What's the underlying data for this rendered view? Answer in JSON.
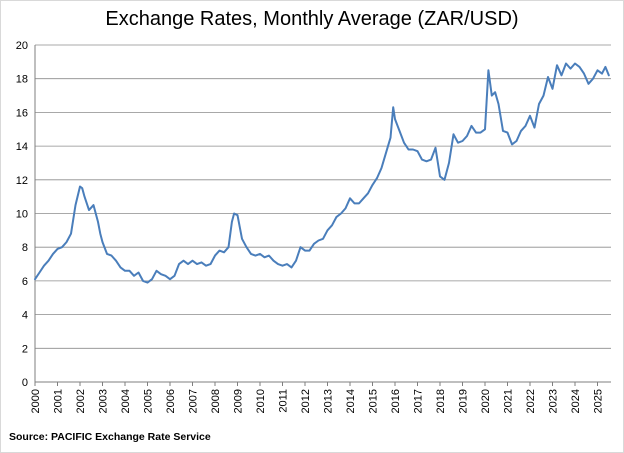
{
  "chart_data": {
    "type": "line",
    "title": "Exchange Rates, Monthly Average (ZAR/USD)",
    "source": "Source: PACIFIC Exchange Rate Service",
    "xlabel": "",
    "ylabel": "",
    "ylim": [
      0,
      20
    ],
    "yticks": [
      "0",
      "2",
      "4",
      "6",
      "8",
      "10",
      "12",
      "14",
      "16",
      "18",
      "20"
    ],
    "xlim": [
      2000,
      2025.6
    ],
    "xticks": [
      "2000",
      "2001",
      "2002",
      "2003",
      "2004",
      "2005",
      "2006",
      "2007",
      "2008",
      "2009",
      "2010",
      "2011",
      "2012",
      "2013",
      "2014",
      "2015",
      "2016",
      "2017",
      "2018",
      "2019",
      "2020",
      "2021",
      "2022",
      "2023",
      "2024",
      "2025"
    ],
    "grid": "horizontal",
    "legend": "none",
    "line_color": "#4a7ebb",
    "series": [
      {
        "x": [
          2000.0,
          2000.2,
          2000.4,
          2000.6,
          2000.8,
          2001.0,
          2001.2,
          2001.4,
          2001.6,
          2001.8,
          2002.0,
          2002.1,
          2002.2,
          2002.4,
          2002.6,
          2002.8,
          2002.9,
          2003.0,
          2003.2,
          2003.4,
          2003.6,
          2003.8,
          2004.0,
          2004.2,
          2004.4,
          2004.6,
          2004.8,
          2005.0,
          2005.2,
          2005.4,
          2005.6,
          2005.8,
          2006.0,
          2006.2,
          2006.4,
          2006.6,
          2006.8,
          2007.0,
          2007.2,
          2007.4,
          2007.6,
          2007.8,
          2008.0,
          2008.2,
          2008.4,
          2008.6,
          2008.75,
          2008.85,
          2009.0,
          2009.2,
          2009.4,
          2009.6,
          2009.8,
          2010.0,
          2010.2,
          2010.4,
          2010.6,
          2010.8,
          2011.0,
          2011.2,
          2011.4,
          2011.6,
          2011.8,
          2012.0,
          2012.2,
          2012.4,
          2012.6,
          2012.8,
          2013.0,
          2013.2,
          2013.4,
          2013.6,
          2013.8,
          2014.0,
          2014.2,
          2014.4,
          2014.6,
          2014.8,
          2015.0,
          2015.2,
          2015.4,
          2015.6,
          2015.8,
          2015.92,
          2016.0,
          2016.2,
          2016.4,
          2016.6,
          2016.8,
          2017.0,
          2017.2,
          2017.4,
          2017.6,
          2017.8,
          2018.0,
          2018.2,
          2018.4,
          2018.6,
          2018.8,
          2019.0,
          2019.2,
          2019.4,
          2019.6,
          2019.8,
          2020.0,
          2020.15,
          2020.3,
          2020.45,
          2020.6,
          2020.8,
          2021.0,
          2021.2,
          2021.4,
          2021.6,
          2021.8,
          2022.0,
          2022.2,
          2022.4,
          2022.6,
          2022.8,
          2023.0,
          2023.2,
          2023.4,
          2023.6,
          2023.8,
          2024.0,
          2024.2,
          2024.4,
          2024.6,
          2024.8,
          2025.0,
          2025.2,
          2025.35,
          2025.5
        ],
        "y": [
          6.1,
          6.5,
          6.9,
          7.2,
          7.6,
          7.9,
          8.0,
          8.3,
          8.8,
          10.5,
          11.6,
          11.5,
          11.0,
          10.2,
          10.5,
          9.5,
          8.8,
          8.3,
          7.6,
          7.5,
          7.2,
          6.8,
          6.6,
          6.6,
          6.3,
          6.5,
          6.0,
          5.9,
          6.1,
          6.6,
          6.4,
          6.3,
          6.1,
          6.3,
          7.0,
          7.2,
          7.0,
          7.2,
          7.0,
          7.1,
          6.9,
          7.0,
          7.5,
          7.8,
          7.7,
          8.0,
          9.5,
          10.0,
          9.9,
          8.5,
          8.0,
          7.6,
          7.5,
          7.6,
          7.4,
          7.5,
          7.2,
          7.0,
          6.9,
          7.0,
          6.8,
          7.2,
          8.0,
          7.8,
          7.8,
          8.2,
          8.4,
          8.5,
          9.0,
          9.3,
          9.8,
          10.0,
          10.3,
          10.9,
          10.6,
          10.6,
          10.9,
          11.2,
          11.7,
          12.1,
          12.7,
          13.6,
          14.5,
          16.3,
          15.6,
          14.9,
          14.2,
          13.8,
          13.8,
          13.7,
          13.2,
          13.1,
          13.2,
          13.9,
          12.2,
          12.0,
          13.0,
          14.7,
          14.2,
          14.3,
          14.6,
          15.2,
          14.8,
          14.8,
          15.0,
          18.5,
          17.0,
          17.2,
          16.5,
          14.9,
          14.8,
          14.1,
          14.3,
          14.9,
          15.2,
          15.8,
          15.1,
          16.5,
          17.0,
          18.1,
          17.4,
          18.8,
          18.2,
          18.9,
          18.6,
          18.9,
          18.7,
          18.3,
          17.7,
          18.0,
          18.5,
          18.3,
          18.7,
          18.2
        ]
      }
    ]
  }
}
